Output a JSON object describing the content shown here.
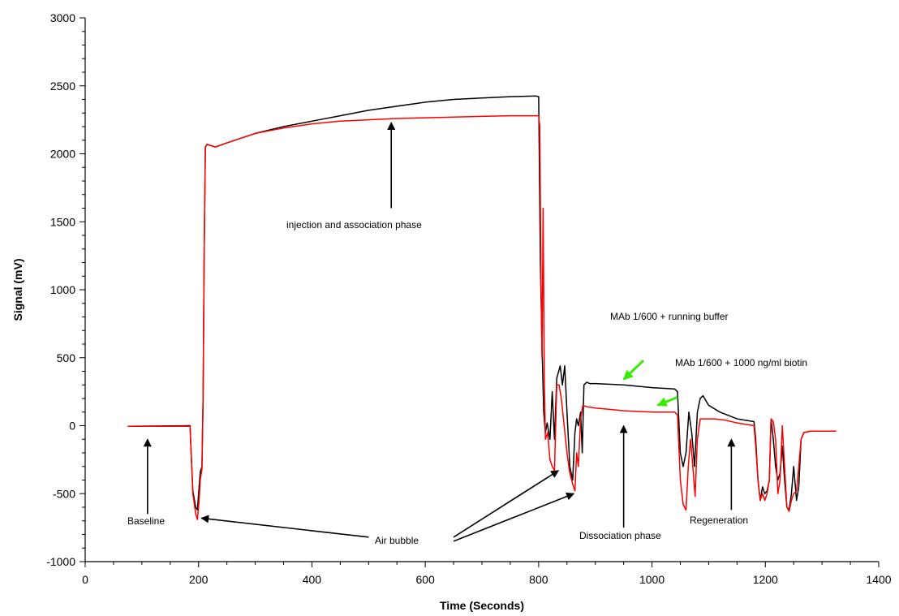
{
  "chart_data": {
    "type": "line",
    "title": "",
    "xlabel": "Time (Seconds)",
    "ylabel": "Signal (mV)",
    "xlim": [
      0,
      1400
    ],
    "ylim": [
      -1000,
      3000
    ],
    "x_ticks": [
      0,
      200,
      400,
      600,
      800,
      1000,
      1200,
      1400
    ],
    "y_ticks": [
      -1000,
      -500,
      0,
      500,
      1000,
      1500,
      2000,
      2500,
      3000
    ],
    "x_tick_labels": [
      "0",
      "200",
      "400",
      "600",
      "800",
      "1000",
      "1200",
      "1400"
    ],
    "y_tick_labels": [
      "-1000",
      "-500",
      "0",
      "500",
      "1000",
      "1500",
      "2000",
      "2500",
      "3000"
    ],
    "grid": false,
    "series": [
      {
        "color": "#000000",
        "points": [
          [
            75,
            -5
          ],
          [
            110,
            -3
          ],
          [
            150,
            -2
          ],
          [
            185,
            0
          ],
          [
            187,
            -200
          ],
          [
            190,
            -480
          ],
          [
            195,
            -600
          ],
          [
            198,
            -620
          ],
          [
            201,
            -450
          ],
          [
            203,
            -340
          ],
          [
            206,
            -300
          ],
          [
            208,
            200
          ],
          [
            210,
            1300
          ],
          [
            212,
            2050
          ],
          [
            215,
            2070
          ],
          [
            222,
            2060
          ],
          [
            230,
            2050
          ],
          [
            250,
            2080
          ],
          [
            300,
            2150
          ],
          [
            350,
            2200
          ],
          [
            400,
            2240
          ],
          [
            450,
            2280
          ],
          [
            500,
            2320
          ],
          [
            550,
            2350
          ],
          [
            600,
            2380
          ],
          [
            650,
            2400
          ],
          [
            700,
            2410
          ],
          [
            750,
            2420
          ],
          [
            795,
            2425
          ],
          [
            800,
            2420
          ],
          [
            803,
            1200
          ],
          [
            806,
            600
          ],
          [
            809,
            100
          ],
          [
            812,
            -50
          ],
          [
            815,
            20
          ],
          [
            820,
            -100
          ],
          [
            824,
            250
          ],
          [
            828,
            -100
          ],
          [
            832,
            350
          ],
          [
            838,
            440
          ],
          [
            842,
            300
          ],
          [
            846,
            440
          ],
          [
            850,
            100
          ],
          [
            855,
            -300
          ],
          [
            860,
            -400
          ],
          [
            864,
            -50
          ],
          [
            867,
            50
          ],
          [
            870,
            0
          ],
          [
            874,
            100
          ],
          [
            877,
            -200
          ],
          [
            880,
            300
          ],
          [
            885,
            320
          ],
          [
            890,
            310
          ],
          [
            900,
            310
          ],
          [
            950,
            300
          ],
          [
            1000,
            280
          ],
          [
            1040,
            270
          ],
          [
            1045,
            250
          ],
          [
            1050,
            -200
          ],
          [
            1055,
            -300
          ],
          [
            1060,
            -200
          ],
          [
            1065,
            100
          ],
          [
            1070,
            -50
          ],
          [
            1075,
            -300
          ],
          [
            1080,
            100
          ],
          [
            1085,
            200
          ],
          [
            1090,
            220
          ],
          [
            1100,
            150
          ],
          [
            1120,
            100
          ],
          [
            1150,
            50
          ],
          [
            1180,
            30
          ],
          [
            1183,
            -100
          ],
          [
            1187,
            -400
          ],
          [
            1191,
            -550
          ],
          [
            1195,
            -450
          ],
          [
            1199,
            -500
          ],
          [
            1203,
            -480
          ],
          [
            1207,
            -400
          ],
          [
            1210,
            50
          ],
          [
            1214,
            -100
          ],
          [
            1218,
            -300
          ],
          [
            1222,
            -400
          ],
          [
            1226,
            -350
          ],
          [
            1230,
            -150
          ],
          [
            1234,
            -400
          ],
          [
            1238,
            -600
          ],
          [
            1242,
            -620
          ],
          [
            1246,
            -500
          ],
          [
            1250,
            -300
          ],
          [
            1255,
            -550
          ],
          [
            1259,
            -450
          ],
          [
            1263,
            -100
          ],
          [
            1268,
            -50
          ],
          [
            1280,
            -40
          ],
          [
            1300,
            -40
          ],
          [
            1325,
            -40
          ]
        ]
      },
      {
        "color": "#ff0000",
        "points": [
          [
            75,
            -5
          ],
          [
            110,
            -5
          ],
          [
            150,
            -4
          ],
          [
            185,
            -5
          ],
          [
            187,
            -200
          ],
          [
            190,
            -500
          ],
          [
            195,
            -650
          ],
          [
            198,
            -690
          ],
          [
            201,
            -550
          ],
          [
            203,
            -400
          ],
          [
            206,
            -320
          ],
          [
            208,
            200
          ],
          [
            210,
            1300
          ],
          [
            212,
            2050
          ],
          [
            215,
            2070
          ],
          [
            222,
            2060
          ],
          [
            230,
            2050
          ],
          [
            250,
            2080
          ],
          [
            300,
            2150
          ],
          [
            350,
            2190
          ],
          [
            400,
            2220
          ],
          [
            450,
            2240
          ],
          [
            500,
            2250
          ],
          [
            550,
            2260
          ],
          [
            600,
            2265
          ],
          [
            650,
            2270
          ],
          [
            700,
            2275
          ],
          [
            750,
            2280
          ],
          [
            795,
            2280
          ],
          [
            800,
            2280
          ],
          [
            802,
            2200
          ],
          [
            804,
            1100
          ],
          [
            806,
            500
          ],
          [
            808,
            1600
          ],
          [
            810,
            400
          ],
          [
            812,
            -100
          ],
          [
            816,
            -50
          ],
          [
            820,
            -250
          ],
          [
            824,
            -300
          ],
          [
            828,
            -330
          ],
          [
            832,
            300
          ],
          [
            836,
            300
          ],
          [
            840,
            200
          ],
          [
            845,
            0
          ],
          [
            850,
            -200
          ],
          [
            855,
            -350
          ],
          [
            860,
            -430
          ],
          [
            864,
            -480
          ],
          [
            867,
            -200
          ],
          [
            870,
            -300
          ],
          [
            874,
            50
          ],
          [
            878,
            150
          ],
          [
            885,
            140
          ],
          [
            900,
            130
          ],
          [
            950,
            110
          ],
          [
            1000,
            100
          ],
          [
            1040,
            100
          ],
          [
            1045,
            80
          ],
          [
            1050,
            -400
          ],
          [
            1055,
            -580
          ],
          [
            1060,
            -620
          ],
          [
            1064,
            -300
          ],
          [
            1068,
            -100
          ],
          [
            1072,
            -300
          ],
          [
            1076,
            -520
          ],
          [
            1080,
            -100
          ],
          [
            1085,
            50
          ],
          [
            1095,
            50
          ],
          [
            1110,
            50
          ],
          [
            1130,
            40
          ],
          [
            1150,
            20
          ],
          [
            1180,
            0
          ],
          [
            1183,
            -150
          ],
          [
            1187,
            -400
          ],
          [
            1191,
            -550
          ],
          [
            1195,
            -500
          ],
          [
            1199,
            -550
          ],
          [
            1203,
            -500
          ],
          [
            1207,
            -400
          ],
          [
            1210,
            50
          ],
          [
            1214,
            30
          ],
          [
            1218,
            -100
          ],
          [
            1222,
            -500
          ],
          [
            1226,
            -400
          ],
          [
            1230,
            0
          ],
          [
            1234,
            -300
          ],
          [
            1238,
            -600
          ],
          [
            1242,
            -630
          ],
          [
            1246,
            -550
          ],
          [
            1250,
            -500
          ],
          [
            1255,
            -480
          ],
          [
            1259,
            -300
          ],
          [
            1263,
            -100
          ],
          [
            1268,
            -50
          ],
          [
            1280,
            -40
          ],
          [
            1300,
            -40
          ],
          [
            1325,
            -40
          ]
        ]
      }
    ],
    "annotations": [
      {
        "text": "Baseline",
        "arrow_color": "#000000",
        "arrow_from": [
          110,
          -650
        ],
        "arrow_to": [
          110,
          -100
        ]
      },
      {
        "text": "injection and association phase",
        "arrow_color": "#000000",
        "arrow_from": [
          540,
          1600
        ],
        "arrow_to": [
          540,
          2230
        ]
      },
      {
        "text": "Air bubble",
        "arrow_color": "#000000",
        "arrow_from": [
          500,
          -820
        ],
        "arrow_to": [
          205,
          -680
        ],
        "extra_arrows": [
          {
            "arrow_from": [
              650,
              -820
            ],
            "arrow_to": [
              835,
              -330
            ]
          },
          {
            "arrow_from": [
              650,
              -850
            ],
            "arrow_to": [
              862,
              -500
            ]
          }
        ]
      },
      {
        "text": "MAb 1/600 + running buffer",
        "arrow_color": "#33ee00",
        "arrow_from": [
          985,
          480
        ],
        "arrow_to": [
          950,
          340
        ]
      },
      {
        "text": "MAb 1/600 + 1000 ng/ml biotin",
        "arrow_color": "#33ee00",
        "arrow_from": [
          1045,
          210
        ],
        "arrow_to": [
          1010,
          150
        ]
      },
      {
        "text": "Dissociation phase",
        "arrow_color": "#000000",
        "arrow_from": [
          950,
          -750
        ],
        "arrow_to": [
          950,
          0
        ]
      },
      {
        "text": "Regeneration",
        "arrow_color": "#000000",
        "arrow_from": [
          1140,
          -620
        ],
        "arrow_to": [
          1140,
          -100
        ]
      }
    ]
  }
}
